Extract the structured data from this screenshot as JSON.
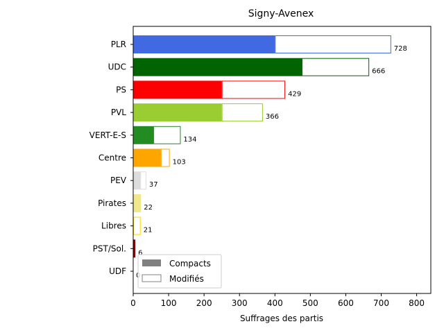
{
  "chart_data": {
    "type": "bar",
    "orientation": "horizontal",
    "title": "Signy-Avenex",
    "xlabel": "Suffrages des partis",
    "ylabel": "",
    "xlim": [
      0,
      840
    ],
    "xticks": [
      "0",
      "100",
      "200",
      "300",
      "400",
      "500",
      "600",
      "700",
      "800"
    ],
    "grid": false,
    "legend_position": "lower-left",
    "categories": [
      "PLR",
      "UDC",
      "PS",
      "PVL",
      "VERT-E-S",
      "Centre",
      "PEV",
      "Pirates",
      "Libres",
      "PST/Sol.",
      "UDF"
    ],
    "colors": [
      "#4169e1",
      "#006400",
      "#ff0000",
      "#9acd32",
      "#228b22",
      "#ffa500",
      "#dcdcdc",
      "#f0e68c",
      "#ffd700",
      "#8b0000",
      "#4b0082"
    ],
    "series": [
      {
        "name": "Compacts",
        "values": [
          400,
          476,
          250,
          250,
          57,
          78,
          20,
          22,
          0,
          3,
          0
        ]
      },
      {
        "name": "Modifiés",
        "values": [
          328,
          190,
          179,
          116,
          77,
          25,
          17,
          0,
          21,
          3,
          0
        ]
      }
    ],
    "totals": [
      728,
      666,
      429,
      366,
      134,
      103,
      37,
      22,
      21,
      6,
      0
    ],
    "legend": [
      {
        "label": "Compacts",
        "color": "#808080"
      },
      {
        "label": "Modifiés",
        "color": "#808080"
      }
    ]
  }
}
